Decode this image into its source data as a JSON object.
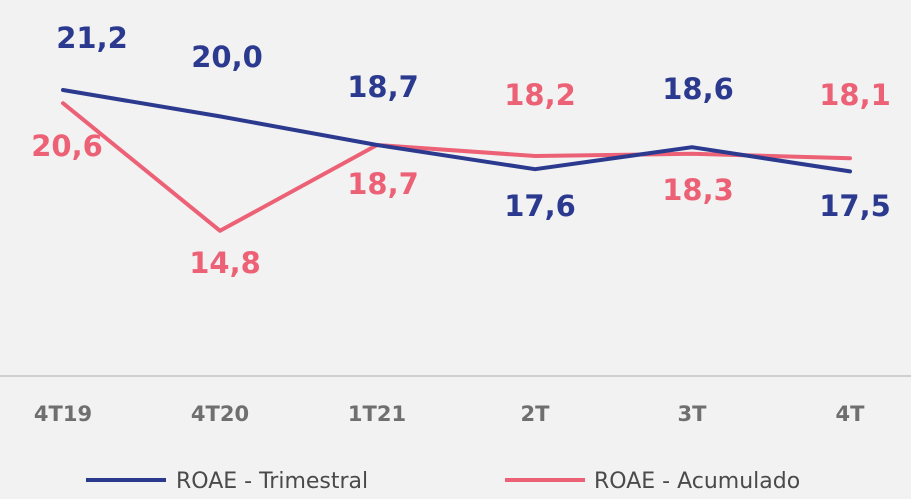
{
  "chart_data": {
    "type": "line",
    "categories": [
      "4T19",
      "4T20",
      "1T21",
      "2T",
      "3T",
      "4T"
    ],
    "series": [
      {
        "name": "ROAE - Trimestral",
        "values": [
          21.2,
          20.0,
          18.7,
          17.6,
          18.6,
          17.5
        ],
        "labels": [
          "21,2",
          "20,0",
          "18,7",
          "17,6",
          "18,6",
          "17,5"
        ],
        "color": "#2b3a8f"
      },
      {
        "name": "ROAE - Acumulado",
        "values": [
          20.6,
          14.8,
          18.7,
          18.2,
          18.3,
          18.1
        ],
        "labels": [
          "20,6",
          "14,8",
          "18,7",
          "18,2",
          "18,3",
          "18,1"
        ],
        "color": "#ec6175"
      }
    ],
    "title": "",
    "xlabel": "",
    "ylabel": "",
    "grid": false,
    "legend": "bottom"
  }
}
